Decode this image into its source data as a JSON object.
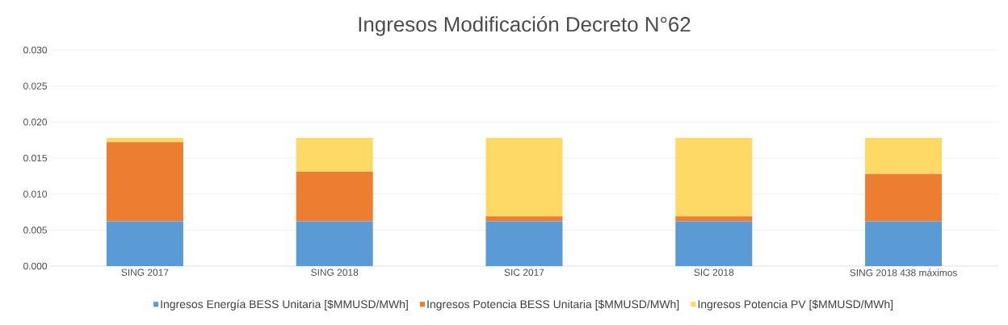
{
  "chart_data": {
    "type": "bar",
    "stacked": true,
    "title": "Ingresos Modificación Decreto N°62",
    "categories": [
      "SING 2017",
      "SING 2018",
      "SIC 2017",
      "SIC 2018",
      "SING 2018 438 máximos"
    ],
    "series": [
      {
        "name": "Ingresos Energía BESS Unitaria [$MMUSD/MWh]",
        "color": "#5b9bd5",
        "values": [
          0.0062,
          0.0062,
          0.0062,
          0.0062,
          0.0062
        ]
      },
      {
        "name": "Ingresos Potencia BESS Unitaria [$MMUSD/MWh]",
        "color": "#ed7d31",
        "values": [
          0.011,
          0.0069,
          0.0007,
          0.0007,
          0.0066
        ]
      },
      {
        "name": "Ingresos Potencia PV [$MMUSD/MWh]",
        "color": "#ffd966",
        "values": [
          0.0006,
          0.0047,
          0.0109,
          0.0109,
          0.005
        ]
      }
    ],
    "ylim": [
      0,
      0.03
    ],
    "yticks": [
      {
        "value": 0,
        "label": "0.000"
      },
      {
        "value": 0.005,
        "label": "0.005"
      },
      {
        "value": 0.01,
        "label": "0.010"
      },
      {
        "value": 0.015,
        "label": "0.015"
      },
      {
        "value": 0.02,
        "label": "0.020"
      },
      {
        "value": 0.025,
        "label": "0.025"
      },
      {
        "value": 0.03,
        "label": "0.030"
      }
    ],
    "grid": "y",
    "legend": "bottom"
  }
}
